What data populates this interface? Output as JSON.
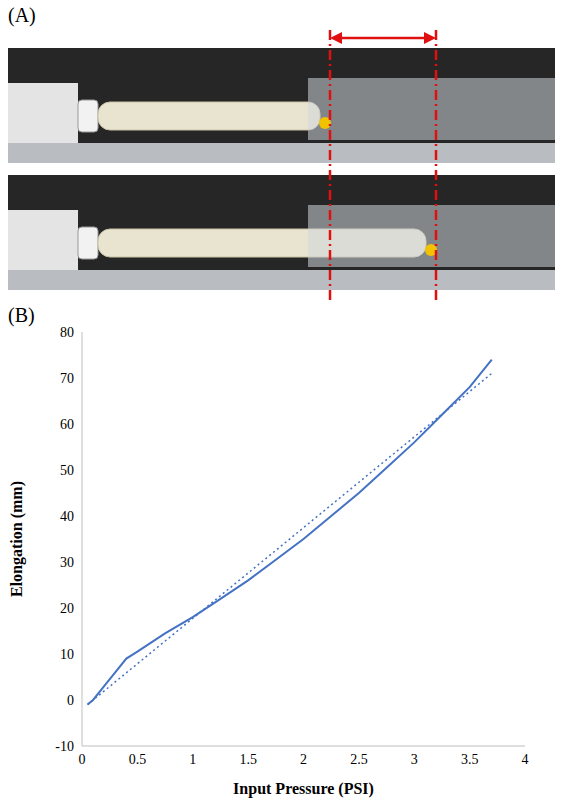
{
  "panels": [
    "(A)",
    "(B)"
  ],
  "chart_data": {
    "type": "line",
    "x_label": "Input Pressure (PSI)",
    "y_label": "Elongation (mm)",
    "xlim": [
      0,
      4
    ],
    "xticks": [
      0,
      0.5,
      1,
      1.5,
      2,
      2.5,
      3,
      3.5,
      4
    ],
    "ylim": [
      -10,
      80
    ],
    "yticks": [
      -10,
      0,
      10,
      20,
      30,
      40,
      50,
      60,
      70,
      80
    ],
    "grid": false,
    "series": [
      {
        "color": "#4472c4",
        "line_style": "solid",
        "x": [
          0.05,
          0.1,
          0.2,
          0.3,
          0.4,
          0.5,
          0.75,
          1.0,
          1.25,
          1.5,
          1.75,
          2.0,
          2.25,
          2.5,
          2.75,
          3.0,
          3.25,
          3.5,
          3.7
        ],
        "values": [
          -1,
          0,
          3,
          6,
          9,
          10.5,
          14.5,
          18,
          22,
          26,
          30.5,
          35,
          40,
          45,
          50.5,
          56,
          62,
          68,
          74
        ]
      },
      {
        "color": "#4472c4",
        "line_style": "dotted",
        "x": [
          0.05,
          3.7
        ],
        "values": [
          -1,
          71
        ]
      }
    ]
  }
}
